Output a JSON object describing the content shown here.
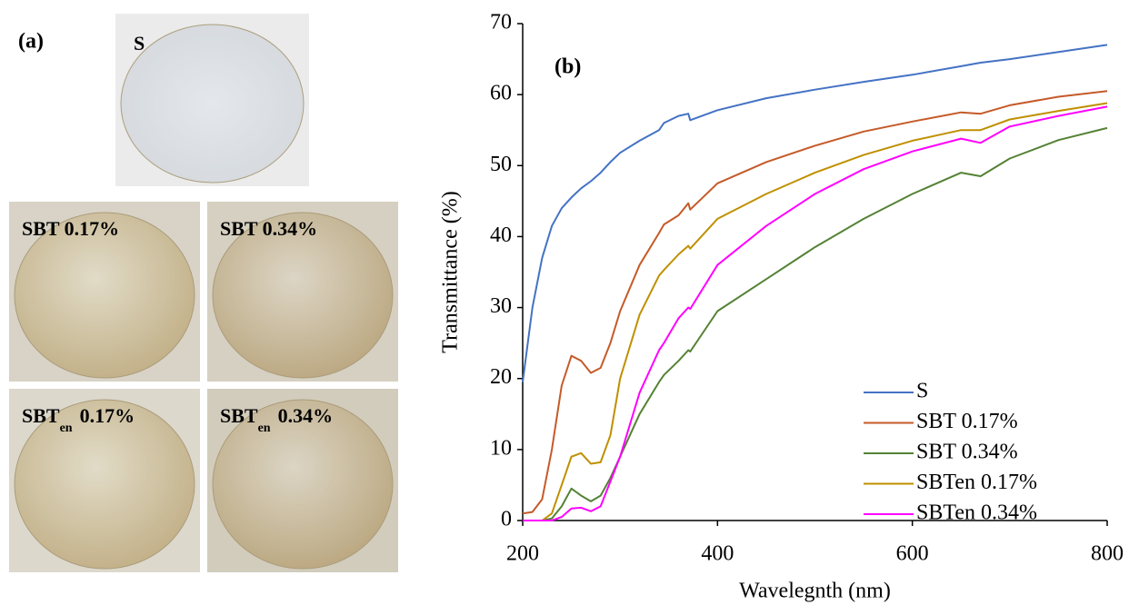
{
  "panel_a": {
    "label": "(a)",
    "photos": [
      {
        "label": "S"
      },
      {
        "label": "SBT 0.17%"
      },
      {
        "label": "SBT 0.34%"
      },
      {
        "label": {
          "base": "SBT",
          "sub": "en",
          "rest": "0.17%"
        }
      },
      {
        "label": {
          "base": "SBT",
          "sub": "en",
          "rest": "0.34%"
        }
      }
    ]
  },
  "chart_data": {
    "type": "line",
    "panel_label": "(b)",
    "x_label": "Wavelegnth (nm)",
    "y_label": "Transmittance (%)",
    "x": [
      200,
      210,
      220,
      230,
      240,
      250,
      260,
      270,
      280,
      290,
      300,
      320,
      340,
      345,
      360,
      370,
      372,
      400,
      450,
      500,
      550,
      600,
      650,
      670,
      700,
      750,
      800
    ],
    "series": [
      {
        "name": "S",
        "color": "#4472c4",
        "values": [
          19.5,
          30,
          37,
          41.5,
          44,
          45.5,
          46.8,
          47.8,
          49,
          50.5,
          51.8,
          53.5,
          55,
          56,
          57,
          57.3,
          56.4,
          57.8,
          59.5,
          60.7,
          61.8,
          62.8,
          64,
          64.5,
          65,
          66,
          67
        ]
      },
      {
        "name": "SBT 0.17%",
        "color": "#c55a28",
        "values": [
          1,
          1.2,
          3,
          10,
          19,
          23.2,
          22.5,
          20.8,
          21.5,
          25,
          29.5,
          36,
          40.5,
          41.7,
          43,
          44.7,
          43.8,
          47.5,
          50.5,
          52.8,
          54.8,
          56.2,
          57.5,
          57.3,
          58.5,
          59.7,
          60.5
        ]
      },
      {
        "name": "SBT 0.34%",
        "color": "#548235",
        "values": [
          0,
          0,
          0,
          0.3,
          2,
          4.5,
          3.5,
          2.7,
          3.5,
          6,
          9,
          15,
          19.5,
          20.5,
          22.5,
          24,
          23.8,
          29.5,
          34,
          38.5,
          42.5,
          46,
          49,
          48.5,
          51,
          53.6,
          55.3
        ]
      },
      {
        "name": "SBTen 0.17%",
        "color": "#bf9000",
        "values": [
          0,
          0,
          0,
          1,
          5,
          9,
          9.5,
          8,
          8.2,
          12,
          20,
          29,
          34.5,
          35.3,
          37.5,
          38.7,
          38.3,
          42.5,
          46,
          49,
          51.5,
          53.5,
          55,
          55,
          56.5,
          57.7,
          58.8
        ]
      },
      {
        "name": "SBTen 0.34%",
        "color": "#ff00ff",
        "values": [
          0,
          0,
          0,
          0,
          0.5,
          1.7,
          1.8,
          1.3,
          2,
          5.5,
          9,
          18,
          24,
          25,
          28.5,
          30,
          29.8,
          36,
          41.5,
          46,
          49.5,
          52,
          53.8,
          53.2,
          55.5,
          57,
          58.3
        ]
      }
    ],
    "xlim": [
      200,
      800
    ],
    "xticks": [
      200,
      400,
      600,
      800
    ],
    "ylim": [
      0,
      70
    ],
    "yticks": [
      0,
      10,
      20,
      30,
      40,
      50,
      60,
      70
    ],
    "legend": "lower-right"
  }
}
